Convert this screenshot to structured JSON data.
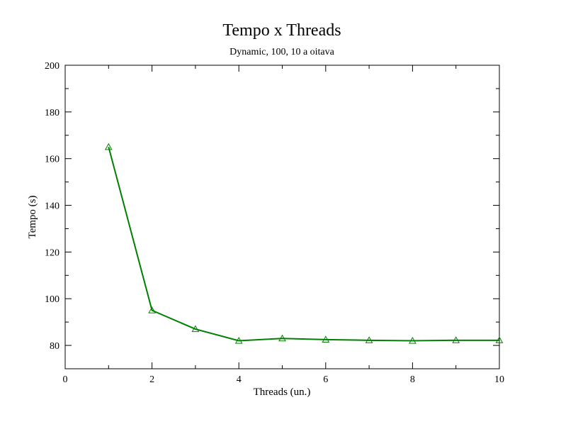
{
  "chart_data": {
    "type": "line",
    "title": "Tempo x Threads",
    "subtitle": "Dynamic, 100, 10 a oitava",
    "xlabel": "Threads (un.)",
    "ylabel": "Tempo (s)",
    "xlim": [
      0,
      10
    ],
    "ylim": [
      70,
      200
    ],
    "x_ticks": [
      0,
      2,
      4,
      6,
      8,
      10
    ],
    "y_ticks": [
      80,
      100,
      120,
      140,
      160,
      180,
      200
    ],
    "grid": false,
    "series": [
      {
        "color": "#008000",
        "marker": "triangle-open",
        "x": [
          1,
          2,
          3,
          4,
          5,
          6,
          7,
          8,
          9,
          10
        ],
        "y": [
          165,
          95,
          87,
          82,
          83,
          82.5,
          82.2,
          82,
          82.2,
          82.2
        ]
      }
    ]
  }
}
